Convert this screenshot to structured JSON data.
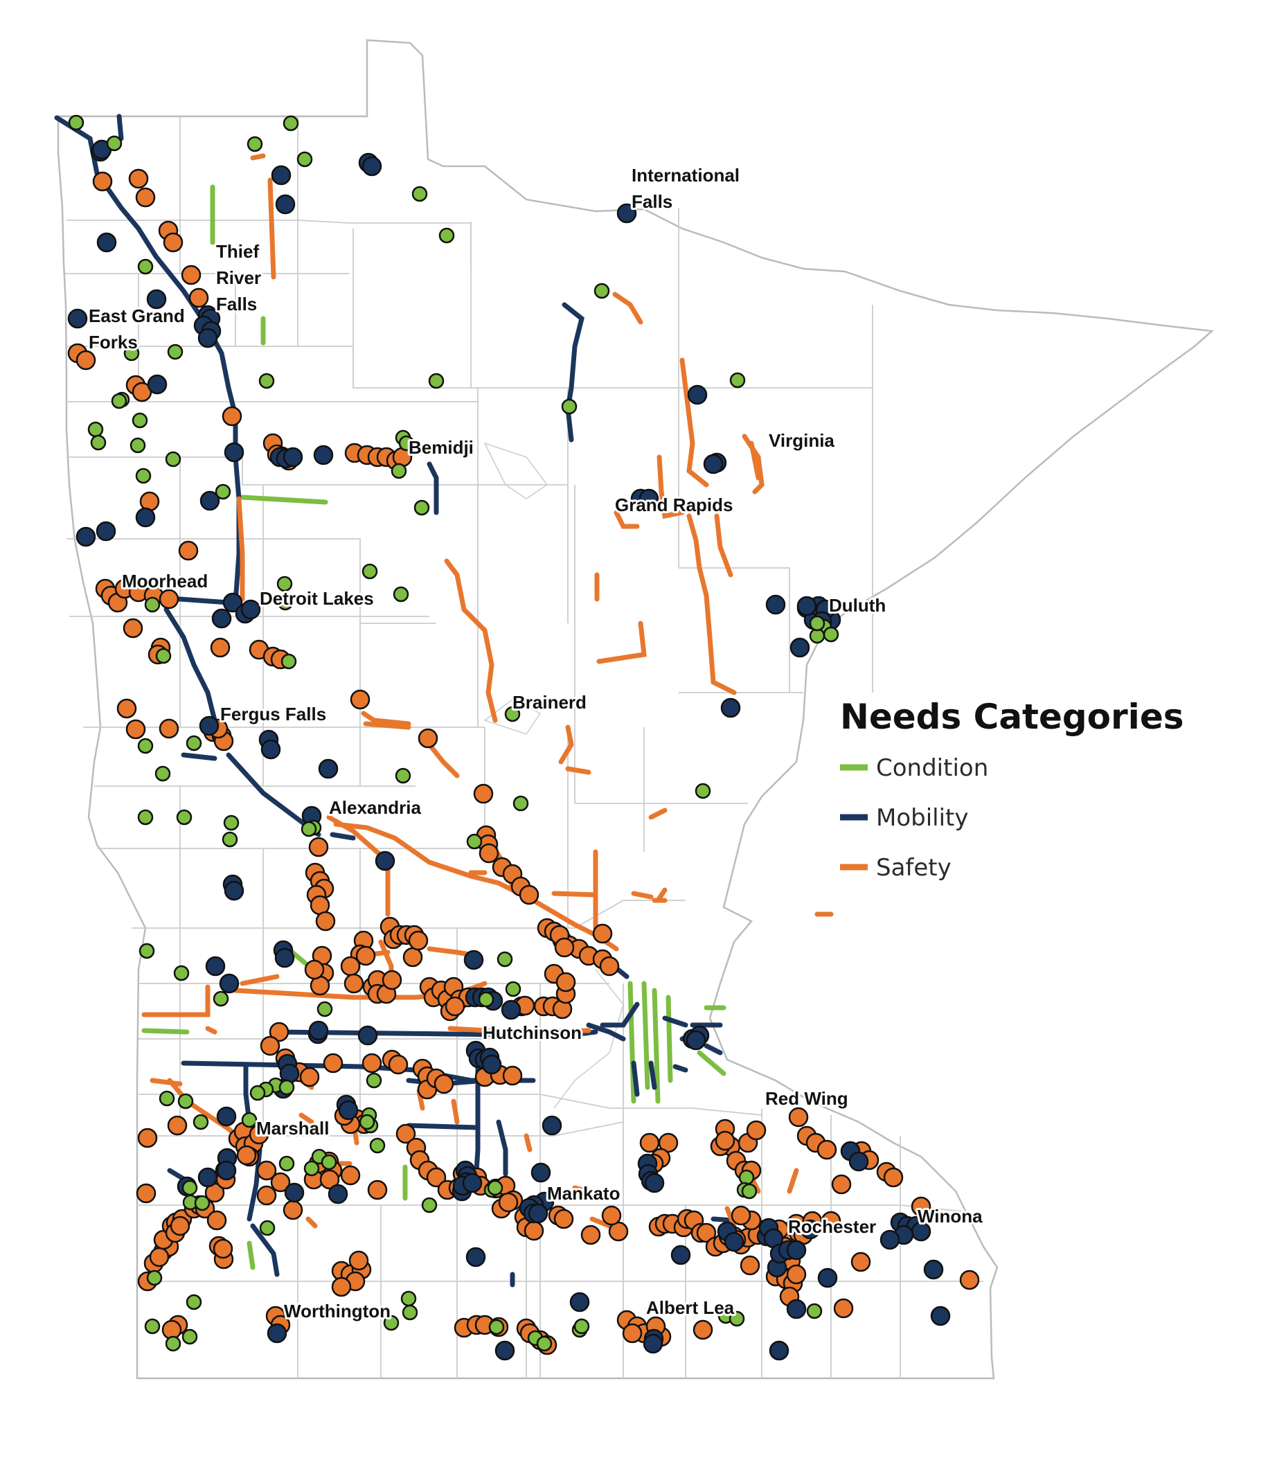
{
  "map": {
    "state": "Minnesota",
    "colors": {
      "condition": "#7dbd42",
      "mobility": "#1b365d",
      "safety": "#e8772e",
      "boundary": "#bbbbbb"
    }
  },
  "legend": {
    "title": "Needs Categories",
    "items": [
      {
        "label": "Condition",
        "color": "#7dbd42"
      },
      {
        "label": "Mobility",
        "color": "#1b365d"
      },
      {
        "label": "Safety",
        "color": "#e8772e"
      }
    ]
  },
  "cities": {
    "international_falls_1": "International",
    "international_falls_2": "Falls",
    "thief_river_falls_1": "Thief",
    "thief_river_falls_2": "River",
    "thief_river_falls_3": "Falls",
    "east_grand_forks_1": "East Grand",
    "east_grand_forks_2": "Forks",
    "bemidji": "Bemidji",
    "virginia": "Virginia",
    "grand_rapids": "Grand Rapids",
    "moorhead": "Moorhead",
    "detroit_lakes": "Detroit Lakes",
    "duluth": "Duluth",
    "brainerd": "Brainerd",
    "fergus_falls": "Fergus Falls",
    "alexandria": "Alexandria",
    "hutchinson": "Hutchinson",
    "red_wing": "Red Wing",
    "marshall": "Marshall",
    "mankato": "Mankato",
    "rochester": "Rochester",
    "winona": "Winona",
    "worthington": "Worthington",
    "albert_lea": "Albert Lea"
  }
}
